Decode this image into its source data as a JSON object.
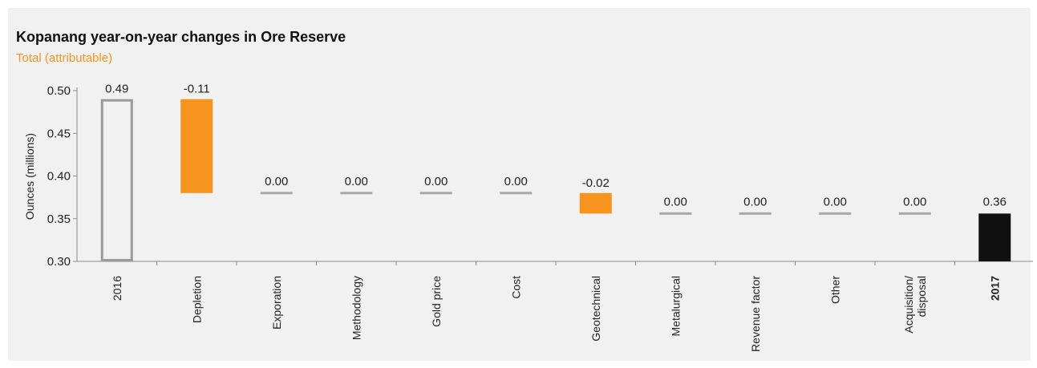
{
  "chart_data": {
    "type": "bar",
    "title_strong": "Kopanang",
    "title_rest": " year-on-year changes in Ore Reserve",
    "subtitle": "Total (attributable)",
    "ylabel": "Ounces (millions)",
    "ylim": [
      0.3,
      0.5
    ],
    "yticks": [
      "0.50",
      "0.45",
      "0.40",
      "0.35",
      "0.30"
    ],
    "ytick_values": [
      0.5,
      0.45,
      0.4,
      0.35,
      0.3
    ],
    "categories": [
      "2016",
      "Depletion",
      "Exporation",
      "Methodology",
      "Gold price",
      "Cost",
      "Geotechnical",
      "Metalurgical",
      "Revenue factor",
      "Other",
      "Acquisition/\ndisposal",
      "2017"
    ],
    "bold_categories": [
      "2017"
    ],
    "bars": [
      {
        "kind": "total-outline",
        "from": 0.3,
        "to": 0.49,
        "label": "0.49"
      },
      {
        "kind": "change",
        "from": 0.49,
        "to": 0.38,
        "label": "-0.11"
      },
      {
        "kind": "zero",
        "from": 0.38,
        "to": 0.38,
        "label": "0.00"
      },
      {
        "kind": "zero",
        "from": 0.38,
        "to": 0.38,
        "label": "0.00"
      },
      {
        "kind": "zero",
        "from": 0.38,
        "to": 0.38,
        "label": "0.00"
      },
      {
        "kind": "zero",
        "from": 0.38,
        "to": 0.38,
        "label": "0.00"
      },
      {
        "kind": "change",
        "from": 0.38,
        "to": 0.356,
        "label": "-0.02"
      },
      {
        "kind": "zero",
        "from": 0.356,
        "to": 0.356,
        "label": "0.00"
      },
      {
        "kind": "zero",
        "from": 0.356,
        "to": 0.356,
        "label": "0.00"
      },
      {
        "kind": "zero",
        "from": 0.356,
        "to": 0.356,
        "label": "0.00"
      },
      {
        "kind": "zero",
        "from": 0.356,
        "to": 0.356,
        "label": "0.00"
      },
      {
        "kind": "total-solid",
        "from": 0.3,
        "to": 0.356,
        "label": "0.36"
      }
    ],
    "colors": {
      "change": "#f7941d",
      "total_solid": "#111111",
      "total_outline": "#9a9a9a",
      "zero_line": "#a8a8a8",
      "axis": "#8a8a8a",
      "subtitle": "#f7941d"
    },
    "grid": false
  }
}
